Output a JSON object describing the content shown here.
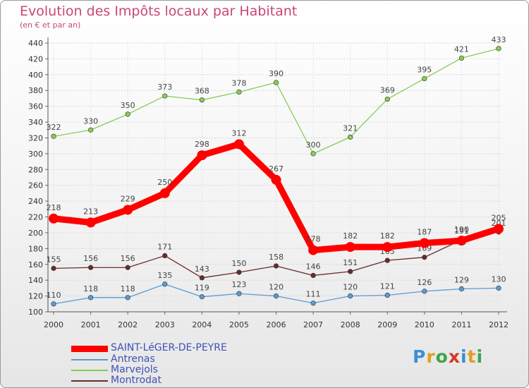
{
  "chart_data": {
    "type": "line",
    "title": "Evolution des Impôts locaux par Habitant",
    "subtitle": "(en € et par an)",
    "x": [
      "2000",
      "2001",
      "2002",
      "2003",
      "2004",
      "2005",
      "2006",
      "2007",
      "2008",
      "2009",
      "2010",
      "2011",
      "2012"
    ],
    "ylim": [
      100,
      440
    ],
    "yticks": [
      100,
      120,
      140,
      160,
      180,
      200,
      220,
      240,
      260,
      280,
      300,
      320,
      340,
      360,
      380,
      400,
      420,
      440
    ],
    "legend_position": "bottom-left",
    "series": [
      {
        "name": "SAINT-LéGER-DE-PEYRE",
        "key": "saint-leger",
        "color": "#ff0000",
        "values": [
          218,
          213,
          229,
          250,
          298,
          312,
          267,
          178,
          182,
          182,
          187,
          190,
          205
        ]
      },
      {
        "name": "Antrenas",
        "key": "antrenas",
        "color": "#5b9bd5",
        "values": [
          110,
          118,
          118,
          135,
          119,
          123,
          120,
          111,
          120,
          121,
          126,
          129,
          130
        ]
      },
      {
        "name": "Marvejols",
        "key": "marvejols",
        "color": "#88cc55",
        "values": [
          322,
          330,
          350,
          373,
          368,
          378,
          390,
          300,
          321,
          369,
          395,
          421,
          433
        ]
      },
      {
        "name": "Montrodat",
        "key": "montrodat",
        "color": "#6b2a2a",
        "values": [
          155,
          156,
          156,
          171,
          143,
          150,
          158,
          146,
          151,
          165,
          169,
          191,
          201
        ]
      }
    ]
  },
  "legend": {
    "saint_leger": "SAINT-LéGER-DE-PEYRE",
    "antrenas": "Antrenas",
    "marvejols": "Marvejols",
    "montrodat": "Montrodat"
  },
  "logo": {
    "text": "Proxiti"
  }
}
